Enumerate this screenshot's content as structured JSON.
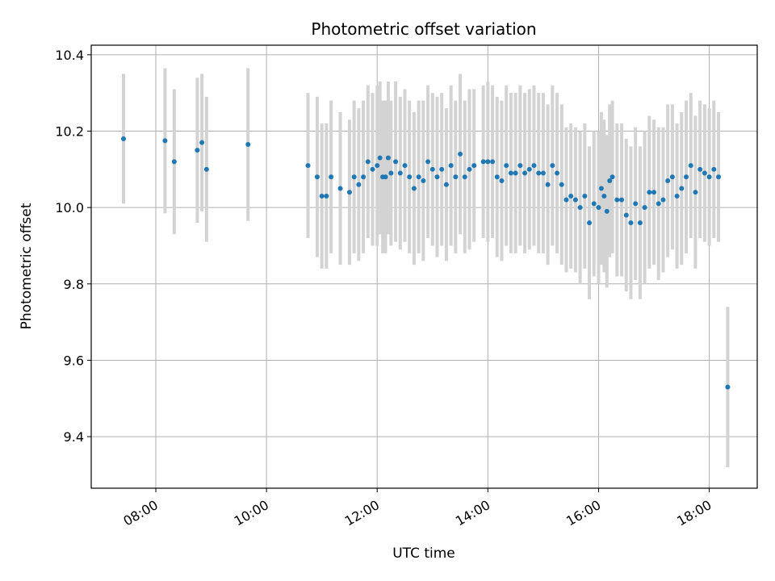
{
  "chart_data": {
    "type": "scatter",
    "title": "Photometric offset variation",
    "xlabel": "UTC time",
    "ylabel": "Photometric offset",
    "x_ticks": [
      "08:00",
      "10:00",
      "12:00",
      "14:00",
      "16:00",
      "18:00"
    ],
    "y_ticks": [
      "9.4",
      "9.6",
      "9.8",
      "10.0",
      "10.2",
      "10.4"
    ],
    "xlim": [
      "06:50",
      "18:52"
    ],
    "ylim": [
      9.265,
      10.425
    ],
    "grid": true,
    "colors": {
      "points": "#1f77b4",
      "errorbars": "#d3d3d3",
      "grid": "#b0b0b0"
    },
    "series": [
      {
        "x": [
          "07:25",
          "08:10",
          "08:20",
          "08:45",
          "08:50",
          "08:55",
          "09:40",
          "10:45",
          "10:55",
          "11:00",
          "11:05",
          "11:10",
          "11:20",
          "11:30",
          "11:35",
          "11:40",
          "11:45",
          "11:50",
          "11:55",
          "12:00",
          "12:03",
          "12:06",
          "12:09",
          "12:12",
          "12:15",
          "12:20",
          "12:25",
          "12:30",
          "12:35",
          "12:40",
          "12:45",
          "12:50",
          "12:55",
          "13:00",
          "13:05",
          "13:10",
          "13:15",
          "13:20",
          "13:25",
          "13:30",
          "13:35",
          "13:40",
          "13:45",
          "13:55",
          "14:00",
          "14:05",
          "14:10",
          "14:15",
          "14:20",
          "14:25",
          "14:30",
          "14:35",
          "14:40",
          "14:45",
          "14:50",
          "14:55",
          "15:00",
          "15:05",
          "15:10",
          "15:15",
          "15:20",
          "15:25",
          "15:30",
          "15:35",
          "15:40",
          "15:45",
          "15:50",
          "15:55",
          "16:00",
          "16:03",
          "16:06",
          "16:09",
          "16:12",
          "16:15",
          "16:20",
          "16:25",
          "16:30",
          "16:35",
          "16:40",
          "16:45",
          "16:50",
          "16:55",
          "17:00",
          "17:05",
          "17:10",
          "17:15",
          "17:20",
          "17:25",
          "17:30",
          "17:35",
          "17:40",
          "17:45",
          "17:50",
          "17:55",
          "18:00",
          "18:05",
          "18:10",
          "18:20"
        ],
        "y": [
          10.18,
          10.175,
          10.12,
          10.15,
          10.17,
          10.1,
          10.165,
          10.11,
          10.08,
          10.03,
          10.03,
          10.08,
          10.05,
          10.04,
          10.08,
          10.06,
          10.08,
          10.12,
          10.1,
          10.11,
          10.13,
          10.08,
          10.08,
          10.13,
          10.09,
          10.12,
          10.09,
          10.11,
          10.08,
          10.05,
          10.08,
          10.07,
          10.12,
          10.1,
          10.08,
          10.1,
          10.06,
          10.11,
          10.08,
          10.14,
          10.08,
          10.1,
          10.11,
          10.12,
          10.12,
          10.12,
          10.08,
          10.07,
          10.11,
          10.09,
          10.09,
          10.11,
          10.09,
          10.1,
          10.11,
          10.09,
          10.09,
          10.06,
          10.11,
          10.09,
          10.06,
          10.02,
          10.03,
          10.02,
          10.0,
          10.03,
          9.96,
          10.01,
          10.0,
          10.05,
          10.03,
          9.99,
          10.07,
          10.08,
          10.02,
          10.02,
          9.98,
          9.96,
          10.01,
          9.96,
          10.0,
          10.04,
          10.04,
          10.01,
          10.02,
          10.07,
          10.08,
          10.03,
          10.05,
          10.08,
          10.11,
          10.04,
          10.1,
          10.09,
          10.08,
          10.1,
          10.08,
          9.53
        ],
        "errors": [
          0.17,
          0.19,
          0.19,
          0.19,
          0.18,
          0.19,
          0.2,
          0.19,
          0.21,
          0.19,
          0.19,
          0.2,
          0.2,
          0.19,
          0.2,
          0.2,
          0.2,
          0.2,
          0.2,
          0.21,
          0.2,
          0.2,
          0.2,
          0.2,
          0.19,
          0.21,
          0.2,
          0.2,
          0.2,
          0.2,
          0.2,
          0.21,
          0.2,
          0.2,
          0.21,
          0.2,
          0.2,
          0.21,
          0.2,
          0.21,
          0.2,
          0.21,
          0.2,
          0.2,
          0.21,
          0.2,
          0.21,
          0.21,
          0.21,
          0.21,
          0.21,
          0.21,
          0.21,
          0.21,
          0.21,
          0.21,
          0.21,
          0.21,
          0.21,
          0.21,
          0.21,
          0.19,
          0.19,
          0.19,
          0.2,
          0.19,
          0.2,
          0.19,
          0.2,
          0.2,
          0.2,
          0.2,
          0.2,
          0.2,
          0.2,
          0.2,
          0.2,
          0.2,
          0.2,
          0.2,
          0.2,
          0.2,
          0.19,
          0.2,
          0.19,
          0.2,
          0.19,
          0.19,
          0.2,
          0.2,
          0.19,
          0.2,
          0.18,
          0.18,
          0.18,
          0.18,
          0.17,
          0.21
        ]
      }
    ]
  }
}
